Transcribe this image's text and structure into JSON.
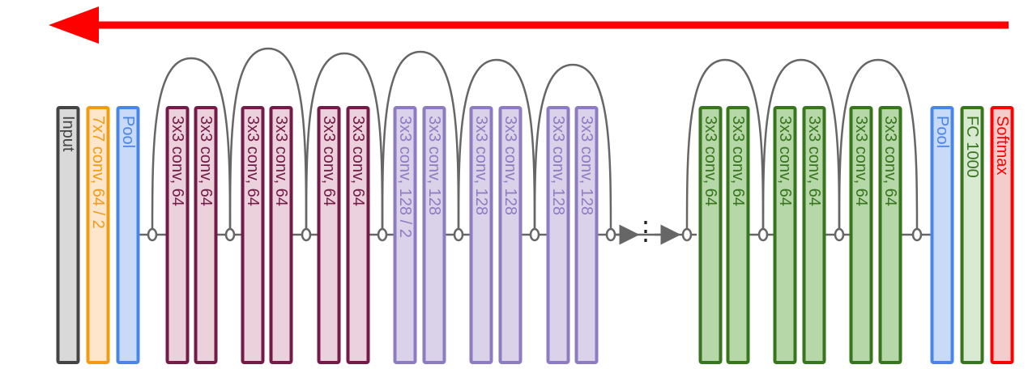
{
  "colors": {
    "arrow": "#ff0000",
    "connector": "#666666",
    "input": {
      "stroke": "#444444",
      "fill": "#d9d9d9",
      "text": "#444444"
    },
    "conv7": {
      "stroke": "#f39c12",
      "fill": "#fde6cc",
      "text": "#f39c12"
    },
    "pool": {
      "stroke": "#4a86e8",
      "fill": "#c9daf8",
      "text": "#4a86e8"
    },
    "conv64": {
      "stroke": "#741b47",
      "fill": "#ead1dc",
      "text": "#741b47"
    },
    "conv128": {
      "stroke": "#8e7cc3",
      "fill": "#d9d2e9",
      "text": "#8e7cc3"
    },
    "convGreen": {
      "stroke": "#38761d",
      "fill": "#b6d7a8",
      "text": "#38761d"
    },
    "fc": {
      "stroke": "#38761d",
      "fill": "#d9ead3",
      "text": "#38761d"
    },
    "softmax": {
      "stroke": "#ff0000",
      "fill": "#f4cccc",
      "text": "#ff0000"
    }
  },
  "layers": [
    {
      "label": "Input",
      "style": "input"
    },
    {
      "label": "7x7 conv, 64 / 2",
      "style": "conv7"
    },
    {
      "label": "Pool",
      "style": "pool"
    },
    {
      "label": "3x3 conv, 64",
      "style": "conv64"
    },
    {
      "label": "3x3 conv, 64",
      "style": "conv64"
    },
    {
      "label": "3x3 conv, 64",
      "style": "conv64"
    },
    {
      "label": "3x3 conv, 64",
      "style": "conv64"
    },
    {
      "label": "3x3 conv, 64",
      "style": "conv64"
    },
    {
      "label": "3x3 conv, 64",
      "style": "conv64"
    },
    {
      "label": "3x3 conv, 128 / 2",
      "style": "conv128"
    },
    {
      "label": "3x3 conv, 128",
      "style": "conv128"
    },
    {
      "label": "3x3 conv, 128",
      "style": "conv128"
    },
    {
      "label": "3x3 conv, 128",
      "style": "conv128"
    },
    {
      "label": "3x3 conv, 128",
      "style": "conv128"
    },
    {
      "label": "3x3 conv, 128",
      "style": "conv128"
    },
    {
      "label": "3x3 conv, 64",
      "style": "convGreen"
    },
    {
      "label": "3x3 conv, 64",
      "style": "convGreen"
    },
    {
      "label": "3x3 conv, 64",
      "style": "convGreen"
    },
    {
      "label": "3x3 conv, 64",
      "style": "convGreen"
    },
    {
      "label": "3x3 conv, 64",
      "style": "convGreen"
    },
    {
      "label": "3x3 conv, 64",
      "style": "convGreen"
    },
    {
      "label": "Pool",
      "style": "pool"
    },
    {
      "label": "FC 1000",
      "style": "fc"
    },
    {
      "label": "Softmax",
      "style": "softmax"
    }
  ],
  "ellipsis": "⋮"
}
